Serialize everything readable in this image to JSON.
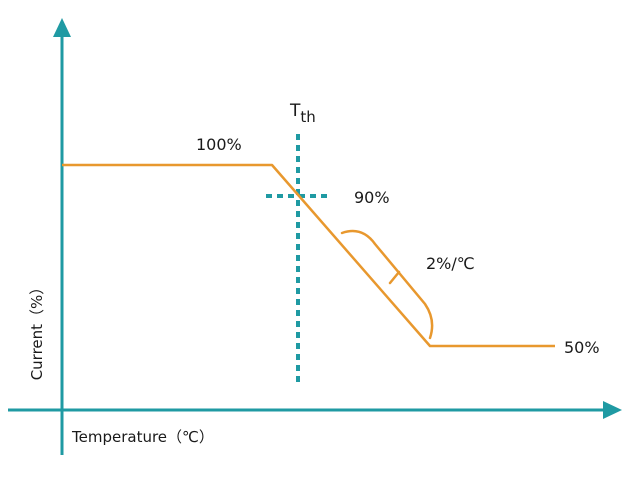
{
  "colors": {
    "axis": "#1f9aa3",
    "curve": "#e8982e",
    "threshold": "#1f9aa3",
    "text": "#1a1a1a"
  },
  "labels": {
    "y_axis": "Current（%）",
    "x_axis": "Temperature（℃）",
    "threshold_main": "T",
    "threshold_sub": "th",
    "level_100": "100%",
    "level_90": "90%",
    "slope": "2%/℃",
    "level_50": "50%"
  },
  "icons": {
    "y_arrow": "arrow-up-icon",
    "x_arrow": "arrow-right-icon"
  }
}
